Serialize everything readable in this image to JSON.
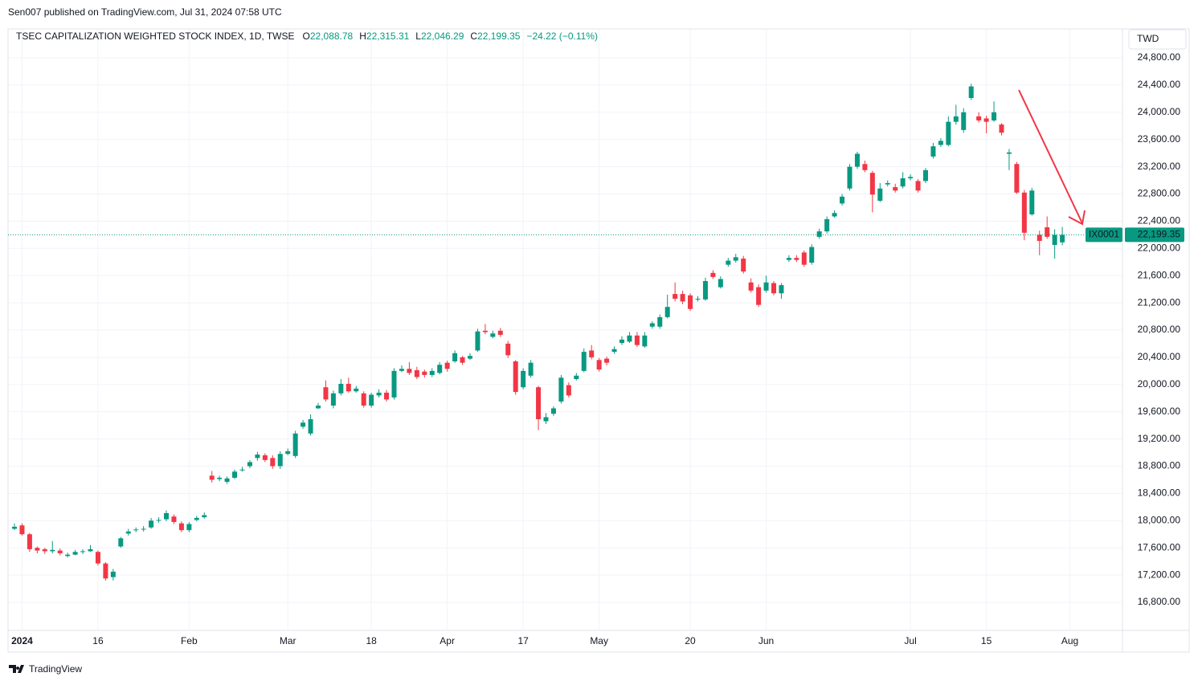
{
  "header": {
    "text": "Sen007 published on TradingView.com, Jul 31, 2024 07:58 UTC"
  },
  "footer": {
    "text": "TradingView"
  },
  "chart_data": {
    "type": "candlestick",
    "title": "TSEC CAPITALIZATION WEIGHTED STOCK INDEX, 1D, TWSE",
    "legend": [
      {
        "key": "O",
        "text": "22,088.78"
      },
      {
        "key": "H",
        "text": "22,315.31"
      },
      {
        "key": "L",
        "text": "22,046.29"
      },
      {
        "key": "C",
        "text": "22,199.35"
      }
    ],
    "change": "−24.22 (−0.11%)",
    "currency": "TWD",
    "last_price_label": "22,199.35",
    "up_color": "#089981",
    "down_color": "#f23645",
    "grid": true,
    "categories": [
      null,
      "2024",
      null,
      null,
      null,
      null,
      null,
      null,
      null,
      null,
      null,
      "16",
      null,
      null,
      null,
      null,
      null,
      null,
      null,
      null,
      null,
      null,
      null,
      "Feb",
      null,
      null,
      null,
      null,
      null,
      null,
      null,
      null,
      null,
      null,
      null,
      null,
      "Mar",
      null,
      null,
      null,
      null,
      null,
      null,
      null,
      null,
      null,
      null,
      "18",
      null,
      null,
      null,
      null,
      null,
      null,
      null,
      null,
      null,
      "Apr",
      null,
      null,
      null,
      null,
      null,
      null,
      null,
      null,
      null,
      "17",
      null,
      null,
      null,
      null,
      null,
      null,
      null,
      null,
      null,
      "May",
      null,
      null,
      null,
      null,
      null,
      null,
      null,
      null,
      null,
      null,
      null,
      "20",
      null,
      null,
      null,
      null,
      null,
      null,
      null,
      null,
      null,
      "Jun",
      null,
      null,
      null,
      null,
      null,
      null,
      null,
      null,
      null,
      null,
      null,
      null,
      null,
      null,
      null,
      null,
      null,
      null,
      "Jul",
      null,
      null,
      null,
      null,
      null,
      null,
      null,
      null,
      null,
      "15",
      null,
      null,
      null,
      null,
      null,
      null,
      null,
      null,
      null,
      null,
      "Aug"
    ],
    "series": [
      {
        "name": "IX0001",
        "open": [
          17880,
          17930,
          17800,
          17600,
          17580,
          17550,
          17560,
          17480,
          17500,
          17540,
          17550,
          17540,
          17370,
          17170,
          17620,
          17810,
          17860,
          17870,
          17900,
          18000,
          18020,
          18060,
          17960,
          17860,
          18010,
          18050,
          18660,
          18610,
          18570,
          18630,
          18740,
          18800,
          18920,
          18960,
          18920,
          18800,
          18980,
          18950,
          19380,
          19280,
          19650,
          19960,
          19690,
          19870,
          20010,
          19900,
          19870,
          19690,
          19840,
          19880,
          19810,
          20200,
          20230,
          20210,
          20190,
          20140,
          20170,
          20320,
          20340,
          20400,
          20380,
          20500,
          20790,
          20700,
          20790,
          20600,
          20340,
          19960,
          20130,
          19960,
          19460,
          19570,
          19750,
          19990,
          20080,
          20200,
          20500,
          20360,
          20380,
          20480,
          20610,
          20630,
          20720,
          20560,
          20850,
          20850,
          20990,
          21330,
          21330,
          21310,
          21250,
          21250,
          21640,
          21430,
          21760,
          21820,
          21850,
          21500,
          21430,
          21380,
          21490,
          21340,
          21830,
          21860,
          21940,
          21790,
          22170,
          22250,
          22470,
          22660,
          22880,
          23200,
          23240,
          23110,
          22700,
          22940,
          22900,
          22910,
          23030,
          22990,
          22990,
          23350,
          23520,
          23520,
          23860,
          23740,
          24210,
          23940,
          23910,
          23880,
          23820,
          23390,
          23240,
          22820,
          22500,
          22200,
          22310,
          22050,
          22088.78,
          null
        ],
        "high": [
          17960,
          17960,
          17820,
          17620,
          17600,
          17700,
          17590,
          17530,
          17570,
          17580,
          17640,
          17560,
          17390,
          17290,
          17760,
          17880,
          17900,
          17920,
          18040,
          18050,
          18150,
          18090,
          17990,
          17980,
          18070,
          18120,
          18730,
          18660,
          18650,
          18750,
          18790,
          18890,
          19010,
          18990,
          18960,
          19020,
          19060,
          19320,
          19480,
          19560,
          19730,
          20060,
          19910,
          20080,
          20100,
          19980,
          19900,
          19880,
          19930,
          19920,
          20240,
          20280,
          20330,
          20260,
          20220,
          20240,
          20330,
          20350,
          20500,
          20420,
          20460,
          20820,
          20890,
          20790,
          20830,
          20640,
          20360,
          20240,
          20360,
          19980,
          19580,
          19680,
          20140,
          20030,
          20170,
          20530,
          20580,
          20390,
          20410,
          20560,
          20710,
          20770,
          20770,
          20770,
          20930,
          21030,
          21320,
          21500,
          21380,
          21340,
          21300,
          21570,
          21680,
          21590,
          21860,
          21920,
          21890,
          21560,
          21470,
          21600,
          21520,
          21490,
          21900,
          21900,
          21970,
          22060,
          22290,
          22470,
          22560,
          22800,
          23240,
          23420,
          23290,
          23140,
          22960,
          23000,
          22950,
          23120,
          23090,
          23020,
          23180,
          23550,
          23620,
          23940,
          24110,
          24060,
          24420,
          24000,
          23950,
          24160,
          23840,
          23460,
          23270,
          22860,
          22890,
          22260,
          22470,
          22280,
          22315.31,
          null
        ],
        "low": [
          17860,
          17780,
          17540,
          17520,
          17510,
          17520,
          17490,
          17460,
          17490,
          17510,
          17540,
          17340,
          17120,
          17120,
          17600,
          17780,
          17830,
          17840,
          17880,
          17970,
          17990,
          17950,
          17830,
          17830,
          17990,
          18030,
          18560,
          18580,
          18540,
          18610,
          18720,
          18770,
          18880,
          18860,
          18760,
          18760,
          18960,
          18920,
          19350,
          19250,
          19640,
          19750,
          19650,
          19840,
          19880,
          19880,
          19660,
          19660,
          19810,
          19750,
          19780,
          20180,
          20140,
          20080,
          20100,
          20110,
          20150,
          20190,
          20320,
          20290,
          20360,
          20480,
          20740,
          20680,
          20700,
          20390,
          19850,
          19930,
          20100,
          19330,
          19420,
          19540,
          19720,
          19810,
          20060,
          20180,
          20370,
          20190,
          20280,
          20450,
          20580,
          20610,
          20550,
          20540,
          20820,
          20820,
          20970,
          21220,
          21180,
          21080,
          21220,
          21230,
          21550,
          21410,
          21730,
          21790,
          21630,
          21350,
          21140,
          21350,
          21310,
          21260,
          21800,
          21800,
          21730,
          21760,
          22140,
          22220,
          22450,
          22630,
          22850,
          23170,
          23120,
          22530,
          22680,
          22910,
          22820,
          22880,
          23000,
          22820,
          22960,
          23320,
          23490,
          23500,
          23820,
          23700,
          24180,
          23850,
          23690,
          23860,
          23660,
          23150,
          22800,
          22120,
          22480,
          21900,
          22140,
          21850,
          22046.29,
          null
        ],
        "close": [
          17910,
          17800,
          17580,
          17560,
          17550,
          17570,
          17520,
          17500,
          17540,
          17550,
          17580,
          17370,
          17150,
          17250,
          17740,
          17840,
          17870,
          17880,
          18000,
          18010,
          18110,
          17980,
          17860,
          17950,
          18040,
          18080,
          18600,
          18630,
          18620,
          18720,
          18750,
          18860,
          18970,
          18890,
          18800,
          18980,
          19020,
          19280,
          19440,
          19490,
          19690,
          19780,
          19870,
          20010,
          19900,
          19940,
          19690,
          19850,
          19880,
          19780,
          20200,
          20230,
          20170,
          20110,
          20140,
          20200,
          20290,
          20230,
          20460,
          20320,
          20420,
          20780,
          20770,
          20750,
          20730,
          20430,
          19890,
          20200,
          20320,
          19490,
          19520,
          19650,
          20100,
          19840,
          20130,
          20480,
          20400,
          20220,
          20320,
          20520,
          20660,
          20720,
          20580,
          20720,
          20900,
          20990,
          21140,
          21260,
          21220,
          21110,
          21260,
          21520,
          21580,
          21550,
          21820,
          21870,
          21660,
          21380,
          21170,
          21500,
          21340,
          21460,
          21860,
          21830,
          21760,
          22020,
          22250,
          22430,
          22520,
          22760,
          23200,
          23390,
          23150,
          22790,
          22880,
          22960,
          22850,
          23030,
          23050,
          22850,
          23150,
          23500,
          23580,
          23860,
          23940,
          24000,
          24380,
          23880,
          23860,
          24000,
          23700,
          23410,
          22820,
          22230,
          22850,
          22110,
          22170,
          22200,
          22199.35,
          null
        ]
      }
    ],
    "ylim": [
      16387,
      25225
    ],
    "yticks": [
      {
        "value": 16800,
        "label": "16,800.00"
      },
      {
        "value": 17200,
        "label": "17,200.00"
      },
      {
        "value": 17600,
        "label": "17,600.00"
      },
      {
        "value": 18000,
        "label": "18,000.00"
      },
      {
        "value": 18400,
        "label": "18,400.00"
      },
      {
        "value": 18800,
        "label": "18,800.00"
      },
      {
        "value": 19200,
        "label": "19,200.00"
      },
      {
        "value": 19600,
        "label": "19,600.00"
      },
      {
        "value": 20000,
        "label": "20,000.00"
      },
      {
        "value": 20400,
        "label": "20,400.00"
      },
      {
        "value": 20800,
        "label": "20,800.00"
      },
      {
        "value": 21200,
        "label": "21,200.00"
      },
      {
        "value": 21600,
        "label": "21,600.00"
      },
      {
        "value": 22000,
        "label": "22,000.00"
      },
      {
        "value": 22400,
        "label": "22,400.00"
      },
      {
        "value": 22800,
        "label": "22,800.00"
      },
      {
        "value": 23200,
        "label": "23,200.00"
      },
      {
        "value": 23600,
        "label": "23,600.00"
      },
      {
        "value": 24000,
        "label": "24,000.00"
      },
      {
        "value": 24400,
        "label": "24,400.00"
      },
      {
        "value": 24800,
        "label": "24,800.00"
      }
    ]
  }
}
